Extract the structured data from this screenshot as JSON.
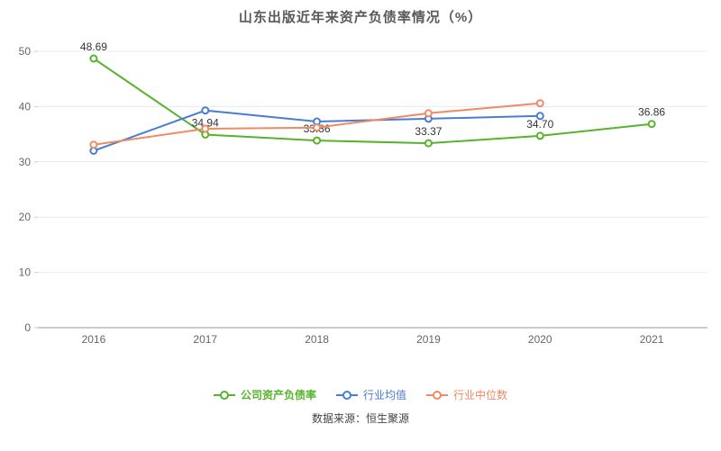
{
  "title": "山东出版近年来资产负债率情况（%）",
  "footer": "数据来源：恒生聚源",
  "chart_data": {
    "type": "line",
    "categories": [
      "2016",
      "2017",
      "2018",
      "2019",
      "2020",
      "2021"
    ],
    "series": [
      {
        "name": "公司资产负债率",
        "color": "#57b32b",
        "values": [
          48.69,
          34.94,
          33.86,
          33.37,
          34.7,
          36.86
        ],
        "labels": [
          "48.69",
          "34.94",
          "33.86",
          "33.37",
          "34.70",
          "36.86"
        ]
      },
      {
        "name": "行业均值",
        "color": "#4a7bd5",
        "values": [
          32.0,
          39.3,
          37.3,
          37.8,
          38.3,
          null
        ],
        "labels": null
      },
      {
        "name": "行业中位数",
        "color": "#ef8a63",
        "values": [
          33.1,
          36.0,
          36.2,
          38.8,
          40.6,
          null
        ],
        "labels": null
      }
    ],
    "ylim": [
      0,
      50
    ],
    "yticks": [
      0,
      10,
      20,
      30,
      40,
      50
    ],
    "grid": true,
    "legend_position": "bottom"
  }
}
